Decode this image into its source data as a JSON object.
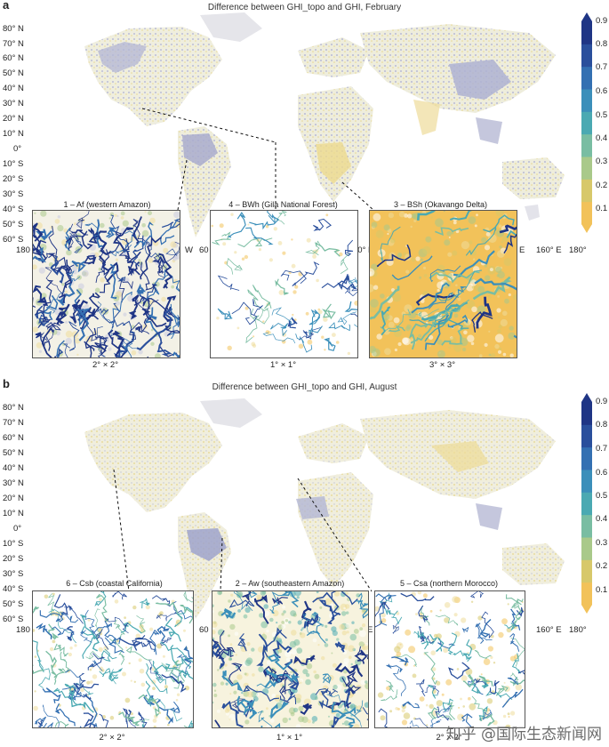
{
  "chart_data": [
    {
      "type": "heatmap",
      "panel_label": "a",
      "title": "Difference between GHI_topo and GHI, February",
      "lat_ticks": [
        "80° N",
        "70° N",
        "60° N",
        "50° N",
        "40° N",
        "30° N",
        "20° N",
        "10° N",
        "0°",
        "10° S",
        "20° S",
        "30° S",
        "40° S",
        "50° S",
        "60° S"
      ],
      "lon_ticks": [
        "180",
        "W",
        "60",
        "40° E",
        "E",
        "160° E",
        "180°"
      ],
      "colorbar": {
        "ticks": [
          "0.9",
          "0.8",
          "0.7",
          "0.6",
          "0.5",
          "0.4",
          "0.3",
          "0.2",
          "0.1"
        ],
        "range": [
          0.1,
          0.9
        ]
      },
      "insets": [
        {
          "title": "1 – Af (western Amazon)",
          "scale": "2° × 2°"
        },
        {
          "title": "4 – BWh (Gila National Forest)",
          "scale": "1° × 1°"
        },
        {
          "title": "3 – BSh (Okavango Delta)",
          "scale": "3° × 3°"
        }
      ]
    },
    {
      "type": "heatmap",
      "panel_label": "b",
      "title": "Difference between GHI_topo and GHI, August",
      "lat_ticks": [
        "80° N",
        "70° N",
        "60° N",
        "50° N",
        "40° N",
        "30° N",
        "20° N",
        "10° N",
        "0°",
        "10° S",
        "20° S",
        "30° S",
        "40° S",
        "50° S",
        "60° S"
      ],
      "lon_ticks": [
        "180",
        "W",
        "60",
        "E",
        "160° E",
        "180°"
      ],
      "colorbar": {
        "ticks": [
          "0.9",
          "0.8",
          "0.7",
          "0.6",
          "0.5",
          "0.4",
          "0.3",
          "0.2",
          "0.1"
        ],
        "range": [
          0.1,
          0.9
        ]
      },
      "insets": [
        {
          "title": "6 – Csb (coastal California)",
          "scale": "2° × 2°"
        },
        {
          "title": "2 – Aw (southeastern Amazon)",
          "scale": "1° × 1°"
        },
        {
          "title": "5 – Csa (northern Morocco)",
          "scale": "2° × 2°"
        }
      ]
    }
  ],
  "colors": {
    "scale": [
      "#f2c25a",
      "#d7c86a",
      "#a9c98a",
      "#79bda2",
      "#4aa9b2",
      "#3b8fba",
      "#3470b2",
      "#2a4f9c",
      "#1f3585"
    ],
    "land_base": "#efeede",
    "land_purple": "#b7b9d4",
    "land_yellow": "#eedc9a"
  },
  "watermark": "知乎 @国际生态新闻网"
}
